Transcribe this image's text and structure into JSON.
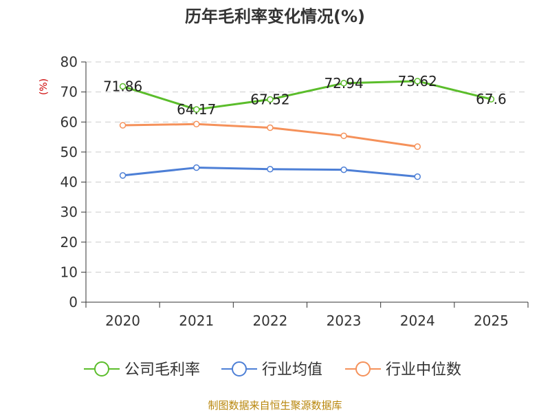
{
  "chart_data": {
    "type": "line",
    "title": "历年毛利率变化情况(%)",
    "ylabel": "(%)",
    "xlabel": "",
    "categories": [
      "2020",
      "2021",
      "2022",
      "2023",
      "2024",
      "2025"
    ],
    "ylim": [
      0,
      80
    ],
    "yticks": [
      0,
      10,
      20,
      30,
      40,
      50,
      60,
      70,
      80
    ],
    "grid": true,
    "legend_position": "bottom",
    "series": [
      {
        "name": "公司毛利率",
        "color": "#5bbd2b",
        "values": [
          71.86,
          64.17,
          67.52,
          72.94,
          73.62,
          67.6
        ],
        "data_labels": [
          "71.86",
          "64.17",
          "67.52",
          "72.94",
          "73.62",
          "67.6"
        ]
      },
      {
        "name": "行业均值",
        "color": "#4d7fd6",
        "values": [
          42.2,
          44.8,
          44.3,
          44.1,
          41.8,
          null
        ]
      },
      {
        "name": "行业中位数",
        "color": "#f5915a",
        "values": [
          58.9,
          59.3,
          58.1,
          55.4,
          51.8,
          null
        ]
      }
    ]
  },
  "source": "制图数据来自恒生聚源数据库"
}
